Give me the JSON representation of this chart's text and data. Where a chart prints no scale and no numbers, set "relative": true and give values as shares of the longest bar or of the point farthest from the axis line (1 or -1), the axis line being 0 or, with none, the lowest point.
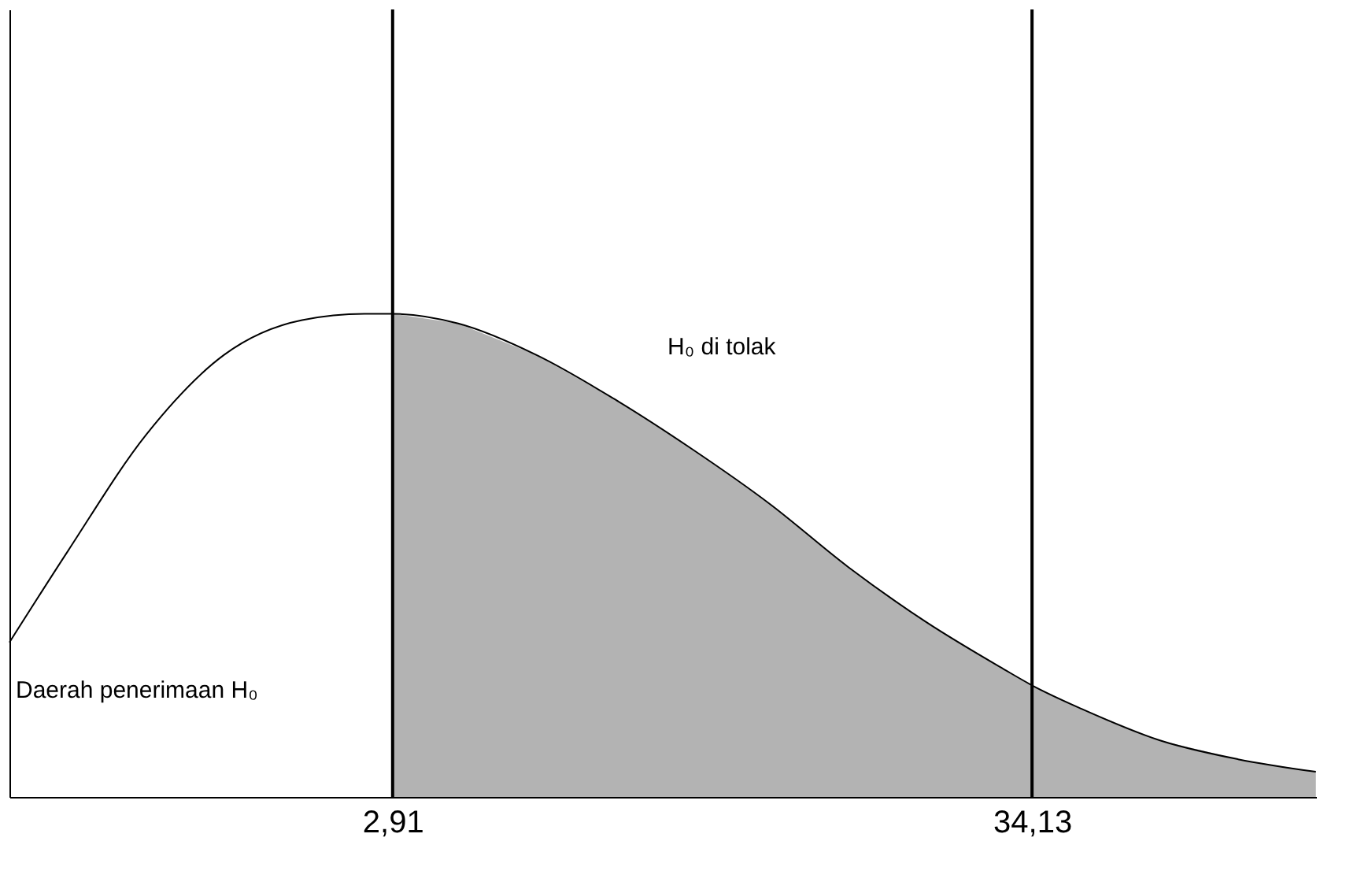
{
  "chart_data": {
    "type": "line",
    "relative": true,
    "xlim": [
      -15.8,
      48
    ],
    "xticks": [
      {
        "value": 2.91,
        "label": "2,91"
      },
      {
        "value": 34.13,
        "label": "34,13"
      }
    ],
    "grid": false,
    "marker": "none",
    "line_style": "solid",
    "series": [
      {
        "color": "#000000",
        "x": [
          -15.8,
          -12.93,
          -9.12,
          -5.32,
          -1.51,
          1.54,
          2.91,
          6.11,
          9.92,
          13.72,
          17.53,
          21.34,
          25.15,
          28.96,
          32.77,
          34.13,
          36.57,
          40.38,
          44.19,
          47.99
        ],
        "values": [
          0.32,
          0.51,
          0.75,
          0.915,
          0.987,
          1.0,
          1.0,
          0.98,
          0.915,
          0.824,
          0.72,
          0.606,
          0.476,
          0.362,
          0.264,
          0.231,
          0.182,
          0.117,
          0.078,
          0.052
        ]
      },
      {
        "type": "area",
        "color": "#b3b3b3",
        "x": [
          2.91,
          6.11,
          9.92,
          13.72,
          17.53,
          21.34,
          25.15,
          28.96,
          32.77,
          34.13,
          36.57,
          40.38,
          44.19,
          47.99
        ],
        "values": [
          1.0,
          0.98,
          0.915,
          0.824,
          0.72,
          0.606,
          0.476,
          0.362,
          0.264,
          0.231,
          0.182,
          0.117,
          0.078,
          0.052
        ]
      }
    ],
    "ref_lines": [
      {
        "axis": "x",
        "value": 2.91,
        "color": "#000000"
      },
      {
        "axis": "x",
        "value": 34.13,
        "color": "#000000"
      }
    ],
    "annotations": [
      "Daerah penerimaan H₀",
      "H₀ di tolak"
    ]
  }
}
